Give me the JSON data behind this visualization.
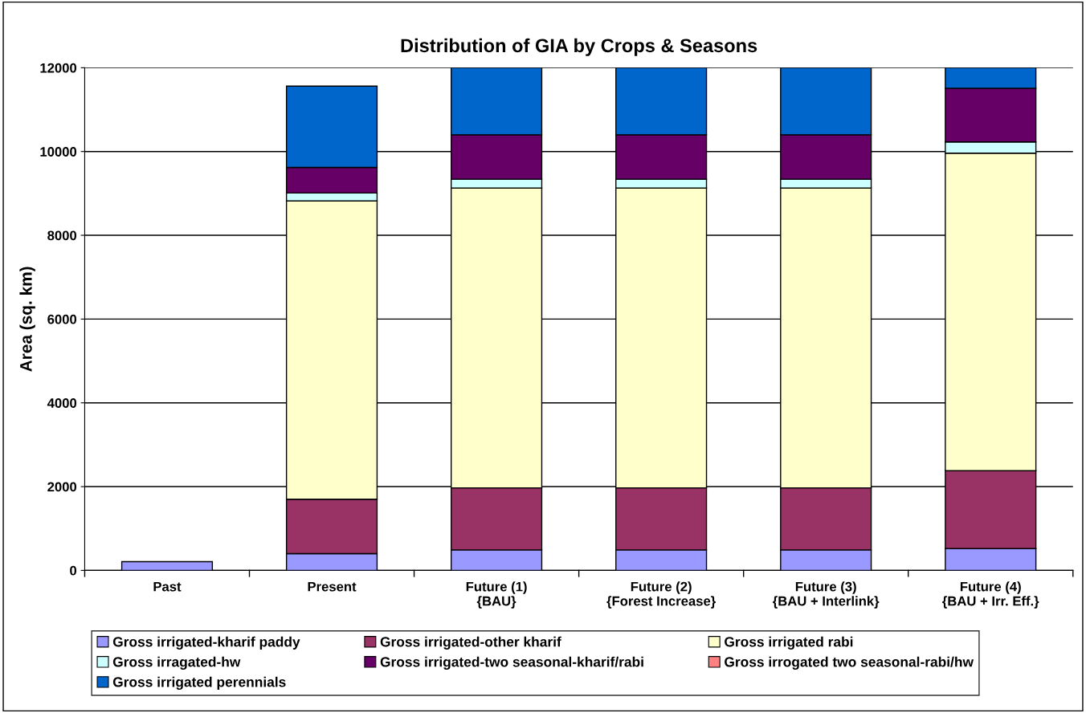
{
  "chart_data": {
    "type": "bar",
    "title": "Distribution of GIA by Crops & Seasons",
    "ylabel": "Area (sq. km)",
    "categories": [
      "Past",
      "Present",
      "Future (1)\n{BAU}",
      "Future (2)\n{Forest Increase}",
      "Future (3)\n{BAU + Interlink}",
      "Future (4)\n{BAU + Irr. Eff.}"
    ],
    "stacked": true,
    "series": [
      {
        "name": "Gross irrigated-kharif paddy",
        "color": "#9999ff",
        "values": [
          210,
          400,
          490,
          490,
          490,
          520
        ]
      },
      {
        "name": "Gross irrigated-other kharif",
        "color": "#993366",
        "values": [
          null,
          1300,
          1480,
          1480,
          1480,
          1860
        ]
      },
      {
        "name": "Gross irrigated rabi",
        "color": "#ffffcc",
        "values": [
          null,
          7120,
          7160,
          7160,
          7160,
          7580
        ]
      },
      {
        "name": "Gross irragated-hw",
        "color": "#ccffff",
        "values": [
          null,
          190,
          210,
          210,
          210,
          270
        ]
      },
      {
        "name": "Gross irrigated-two seasonal-kharif/rabi",
        "color": "#660066",
        "values": [
          null,
          610,
          1060,
          1060,
          1060,
          1280
        ]
      },
      {
        "name": "Gross irrogated two seasonal-rabi/hw",
        "color": "#ff8080",
        "values": [
          null,
          null,
          null,
          null,
          null,
          null
        ]
      },
      {
        "name": "Gross irrigated perennials",
        "color": "#0066cc",
        "values": [
          null,
          1940,
          1600,
          1600,
          1600,
          490
        ]
      }
    ],
    "ylim": [
      0,
      12000
    ],
    "yticks": [
      0,
      2000,
      4000,
      6000,
      8000,
      10000,
      12000
    ],
    "grid": "y",
    "legend": "bottom"
  }
}
